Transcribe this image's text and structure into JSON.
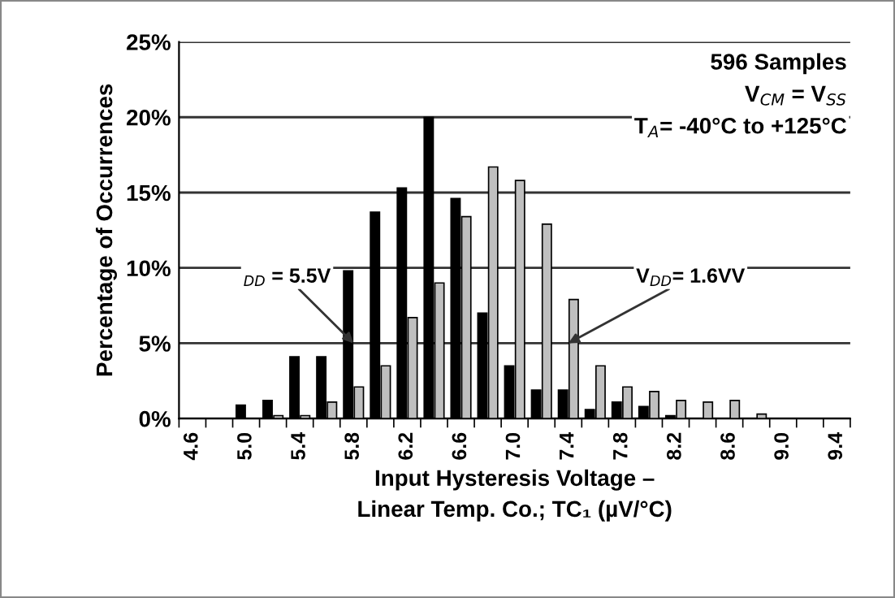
{
  "chart_data": {
    "type": "bar",
    "xlabel": "Input Hysteresis Voltage –\nLinear Temp. Co.; TC₁ (µV/°C)",
    "ylabel": "Percentage of Occurrences",
    "categories": [
      "4.6",
      null,
      "5.0",
      null,
      "5.4",
      null,
      "5.8",
      null,
      "6.2",
      null,
      "6.6",
      null,
      "7.0",
      null,
      "7.4",
      null,
      "7.8",
      null,
      "8.2",
      null,
      "8.6",
      null,
      "9.0",
      null,
      "9.4"
    ],
    "series": [
      {
        "color": "#000000",
        "values": [
          null,
          null,
          0.9,
          1.2,
          4.1,
          4.1,
          9.8,
          13.7,
          15.3,
          20.0,
          14.6,
          7.0,
          3.5,
          1.9,
          1.9,
          0.6,
          1.1,
          0.8,
          0.2,
          null,
          null,
          null,
          null,
          null,
          null
        ]
      },
      {
        "color": "#bfbfbf",
        "values": [
          null,
          null,
          null,
          0.2,
          0.2,
          1.1,
          2.1,
          3.5,
          6.7,
          9.0,
          13.4,
          16.7,
          15.8,
          12.9,
          7.9,
          3.5,
          2.1,
          1.8,
          1.2,
          1.1,
          1.2,
          0.3,
          null,
          null,
          null
        ]
      }
    ],
    "ylim": [
      0,
      25
    ],
    "yticks": [
      {
        "value": 0,
        "label": "0%"
      },
      {
        "value": 5,
        "label": "5%"
      },
      {
        "value": 10,
        "label": "10%"
      },
      {
        "value": 15,
        "label": "15%"
      },
      {
        "value": 20,
        "label": "20%"
      },
      {
        "value": 25,
        "label": "25%"
      }
    ],
    "grid": "y",
    "legend": false,
    "annotations": [
      "596 Samples",
      "V$_{CM}$ = V$_{SS}$",
      "T$_{A}$= -40°C to +125°C",
      {
        "text": "$_{DD}$ = 5.5V",
        "x": "5.8",
        "y": 5
      },
      {
        "text": "V$_{DD}$= 1.6VV",
        "x": "7.4",
        "y": 5
      }
    ]
  }
}
